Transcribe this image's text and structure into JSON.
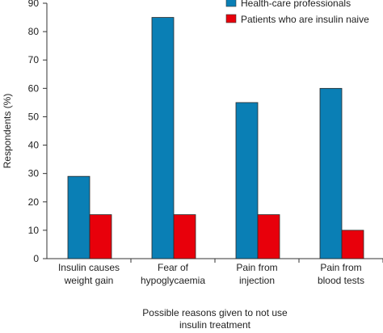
{
  "chart_data": {
    "type": "bar",
    "title": "",
    "xlabel": "Possible reasons given to not use insulin treatment",
    "xlabel_lines": [
      "Possible reasons given to not use",
      "insulin treatment"
    ],
    "ylabel": "Respondents (%)",
    "ylim": [
      0,
      90
    ],
    "yticks": [
      0,
      10,
      20,
      30,
      40,
      50,
      60,
      70,
      80,
      90
    ],
    "categories": [
      "Insulin causes weight gain",
      "Fear of hypoglycaemia",
      "Pain from injection",
      "Pain from blood tests"
    ],
    "category_lines": [
      [
        "Insulin causes",
        "weight gain"
      ],
      [
        "Fear of",
        "hypoglycaemia"
      ],
      [
        "Pain from",
        "injection"
      ],
      [
        "Pain from",
        "blood tests"
      ]
    ],
    "series": [
      {
        "name": "Health-care professionals",
        "color": "#0a7fb5",
        "values": [
          29,
          85,
          55,
          60
        ]
      },
      {
        "name": "Patients who are insulin naive",
        "color": "#e8000b",
        "values": [
          15.5,
          15.5,
          15.5,
          10
        ]
      }
    ],
    "legend_position": "top-right",
    "grid": false
  }
}
